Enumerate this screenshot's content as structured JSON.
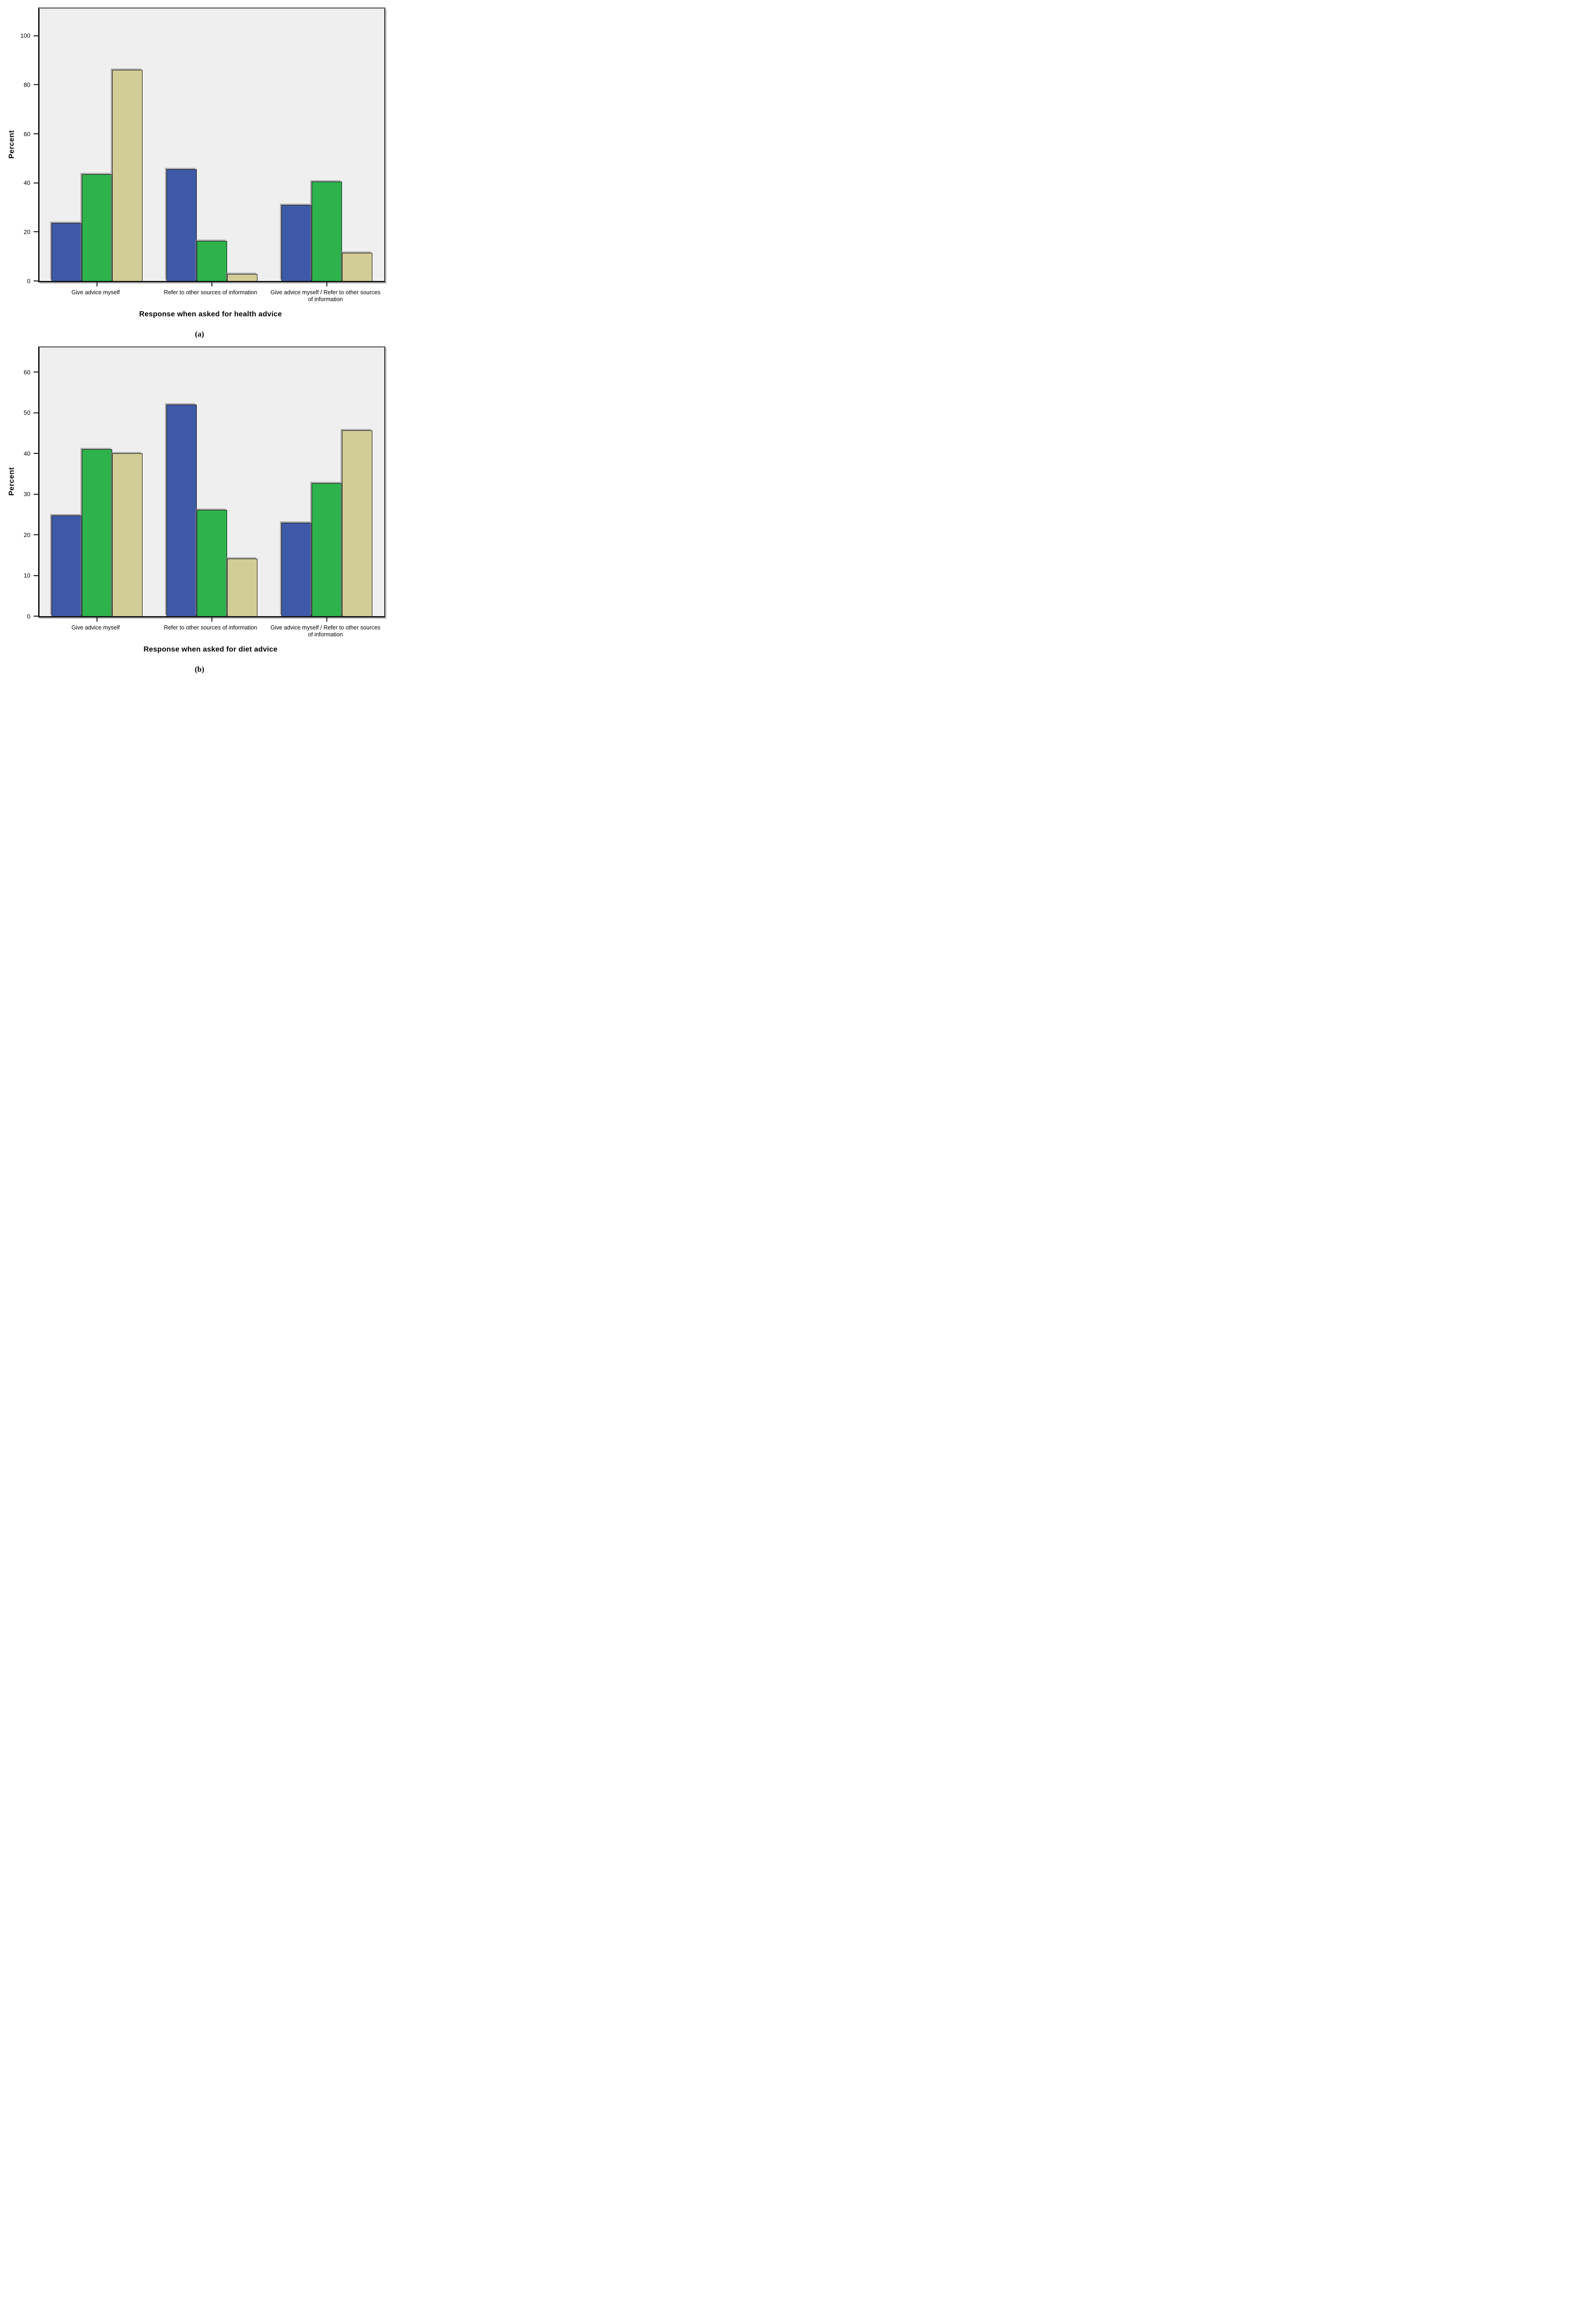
{
  "figure": {
    "background": "#ffffff",
    "plot_background": "#EFEFEF",
    "captions": [
      "(a)",
      "(b)"
    ]
  },
  "chart_data": [
    {
      "id": "a",
      "type": "bar",
      "title": "",
      "xlabel": "Response when asked for health advice",
      "ylabel": "Percent",
      "categories": [
        "Give advice myself",
        "Refer to other sources of information",
        "Give advice myself / Refer to other sources of information"
      ],
      "series": [
        {
          "name": "blue",
          "color": "#3E59A8",
          "values": [
            23.7,
            45.6,
            31.0
          ]
        },
        {
          "name": "green",
          "color": "#2EB24C",
          "values": [
            43.5,
            16.3,
            40.5
          ]
        },
        {
          "name": "tan",
          "color": "#D2CC96",
          "values": [
            86.0,
            2.8,
            11.4
          ]
        }
      ],
      "ylim": [
        0,
        111
      ],
      "yticks": [
        0,
        20,
        40,
        60,
        80,
        100
      ],
      "grid": false,
      "legend": "none",
      "caption": "(a)"
    },
    {
      "id": "b",
      "type": "bar",
      "title": "",
      "xlabel": "Response when asked for diet advice",
      "ylabel": "Percent",
      "categories": [
        "Give advice myself",
        "Refer to other sources of information",
        "Give advice myself / Refer to other sources of information"
      ],
      "series": [
        {
          "name": "blue",
          "color": "#3E59A8",
          "values": [
            24.8,
            52.0,
            23.0
          ]
        },
        {
          "name": "green",
          "color": "#2EB24C",
          "values": [
            41.0,
            26.1,
            32.7
          ]
        },
        {
          "name": "tan",
          "color": "#D2CC96",
          "values": [
            40.0,
            14.1,
            45.7
          ]
        }
      ],
      "ylim": [
        0,
        66
      ],
      "yticks": [
        0,
        10,
        20,
        30,
        40,
        50,
        60
      ],
      "grid": false,
      "legend": "none",
      "caption": "(b)"
    }
  ]
}
